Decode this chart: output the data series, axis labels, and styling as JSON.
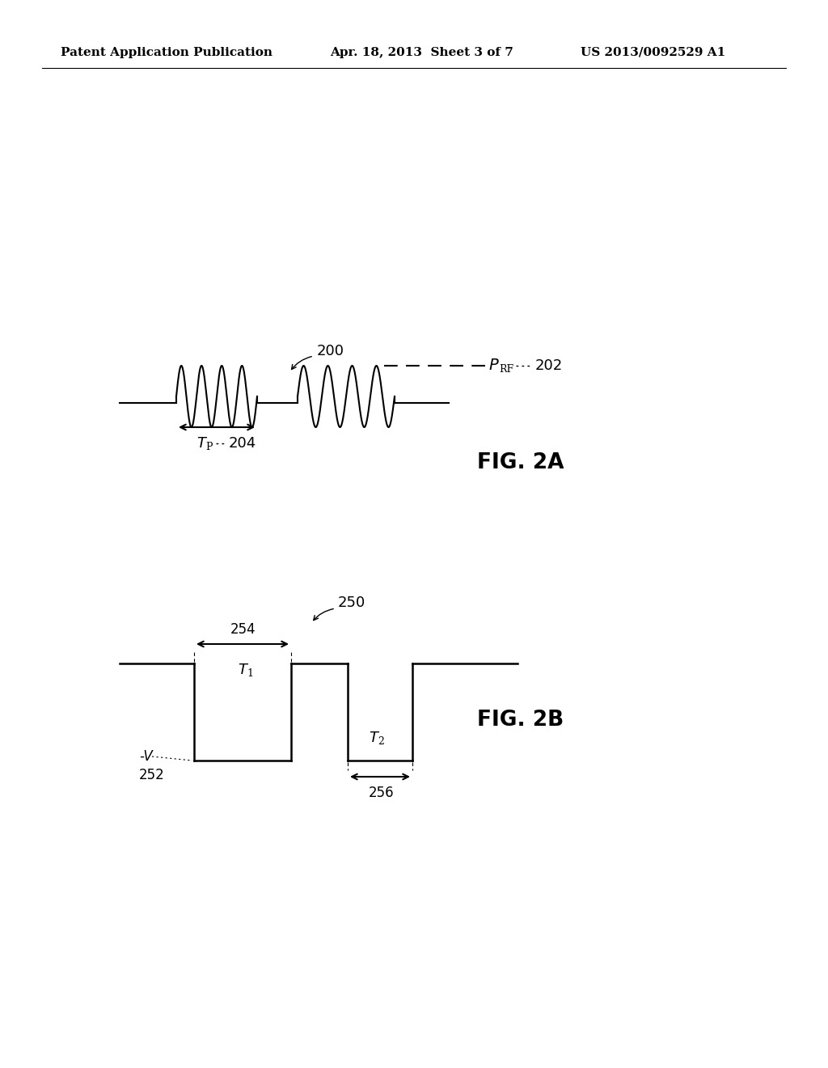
{
  "bg_color": "#ffffff",
  "header_left": "Patent Application Publication",
  "header_mid": "Apr. 18, 2013  Sheet 3 of 7",
  "header_right": "US 2013/0092529 A1",
  "fig2a_label": "200",
  "fig2a_prf_num": "202",
  "fig2a_tp_num": "204",
  "fig2a_caption": "FIG. 2A",
  "fig2b_label": "250",
  "fig2b_v_label": "-V",
  "fig2b_v_num": "252",
  "fig2b_t1_num": "254",
  "fig2b_t2_num": "256",
  "fig2b_caption": "FIG. 2B"
}
